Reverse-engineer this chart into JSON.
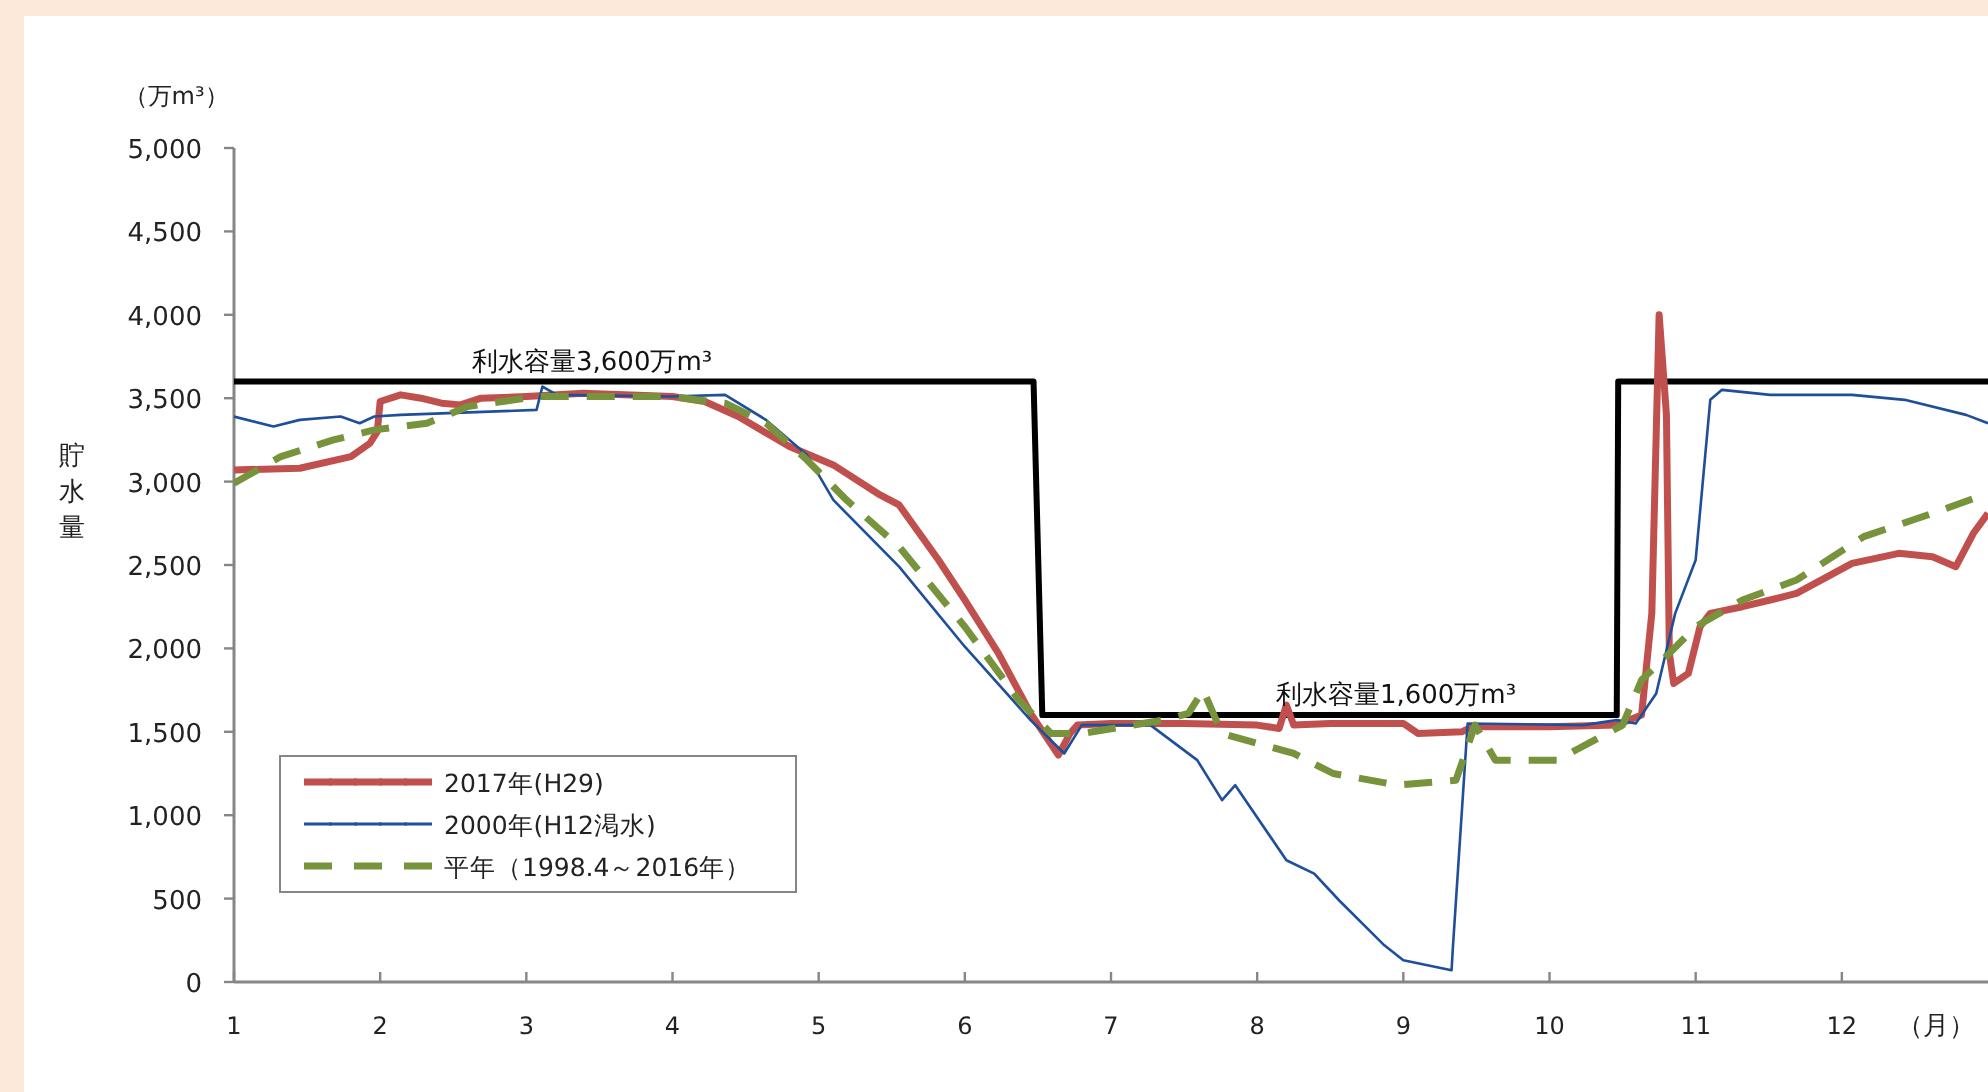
{
  "chart_data": {
    "type": "line",
    "ylabel": "貯水量",
    "xlabel": "（月）",
    "xlim": [
      1,
      13
    ],
    "xticks": [
      1,
      2,
      3,
      4,
      5,
      6,
      7,
      8,
      9,
      10,
      11,
      12
    ],
    "ylim": [
      0,
      5000
    ],
    "yticks": [
      {
        "value": 0,
        "label": "0"
      },
      {
        "value": 500,
        "label": "500"
      },
      {
        "value": 1000,
        "label": "1,000"
      },
      {
        "value": 1500,
        "label": "1,500"
      },
      {
        "value": 2000,
        "label": "2,000"
      },
      {
        "value": 2500,
        "label": "2,500"
      },
      {
        "value": 3000,
        "label": "3,000"
      },
      {
        "value": 3500,
        "label": "3,500"
      },
      {
        "value": 4000,
        "label": "4,000"
      },
      {
        "value": 4500,
        "label": "4,500"
      },
      {
        "value": 5000,
        "label": "5,000"
      }
    ],
    "grid": false,
    "legend": "bottom left",
    "marker": "none",
    "series": [
      {
        "color": "#000000",
        "line_style": "solid",
        "x": [
          1,
          6.47,
          6.53,
          10.46,
          10.47,
          13
        ],
        "values": [
          3600,
          3600,
          1600,
          1600,
          3600,
          3600
        ]
      },
      {
        "name": "2017年(H29)",
        "color": "#c0504d",
        "line_style": "solid",
        "x": [
          1.0,
          1.45,
          1.8,
          1.93,
          1.98,
          2.0,
          2.14,
          2.28,
          2.42,
          2.55,
          2.69,
          3.0,
          3.39,
          3.67,
          4.0,
          4.22,
          4.45,
          4.8,
          5.1,
          5.42,
          5.55,
          5.82,
          6.0,
          6.23,
          6.45,
          6.64,
          6.72,
          6.77,
          7.0,
          7.5,
          8.0,
          8.15,
          8.2,
          8.25,
          8.5,
          9.0,
          9.1,
          9.4,
          9.47,
          10.0,
          10.46,
          10.63,
          10.7,
          10.75,
          10.8,
          10.82,
          10.85,
          10.95,
          11.03,
          11.1,
          11.32,
          11.51,
          11.69,
          12.07,
          12.39,
          12.62,
          12.78,
          12.9,
          13.0
        ],
        "values": [
          3070,
          3080,
          3150,
          3230,
          3300,
          3480,
          3520,
          3500,
          3470,
          3460,
          3500,
          3510,
          3530,
          3520,
          3510,
          3480,
          3390,
          3210,
          3100,
          2920,
          2860,
          2530,
          2290,
          1970,
          1610,
          1360,
          1490,
          1540,
          1550,
          1550,
          1540,
          1520,
          1660,
          1540,
          1550,
          1550,
          1490,
          1500,
          1530,
          1530,
          1540,
          1600,
          2210,
          4000,
          3400,
          1970,
          1790,
          1850,
          2130,
          2210,
          2250,
          2290,
          2330,
          2510,
          2570,
          2550,
          2490,
          2690,
          2810
        ]
      },
      {
        "name": "2000年(H12渇水)",
        "color": "#1f4e9a",
        "line_style": "solid",
        "x": [
          1.0,
          1.27,
          1.45,
          1.73,
          1.86,
          1.96,
          2.14,
          3.07,
          3.11,
          3.21,
          3.99,
          4.36,
          4.64,
          4.92,
          5.1,
          5.55,
          6.0,
          6.45,
          6.68,
          6.8,
          7.27,
          7.59,
          7.76,
          7.85,
          8.2,
          8.39,
          8.56,
          8.87,
          9.0,
          9.33,
          9.34,
          9.44,
          10.23,
          10.46,
          10.59,
          10.73,
          10.86,
          11.0,
          11.1,
          11.18,
          11.51,
          12.07,
          12.43,
          12.85,
          13.0
        ],
        "values": [
          3390,
          3330,
          3370,
          3390,
          3350,
          3390,
          3400,
          3430,
          3570,
          3520,
          3510,
          3520,
          3370,
          3160,
          2890,
          2490,
          2010,
          1570,
          1370,
          1540,
          1540,
          1330,
          1090,
          1180,
          730,
          650,
          490,
          220,
          130,
          70,
          220,
          1550,
          1540,
          1570,
          1550,
          1730,
          2210,
          2530,
          3490,
          3550,
          3520,
          3520,
          3490,
          3400,
          3350
        ]
      },
      {
        "name": "平年（1998.4～2016年）",
        "color": "#77933c",
        "line_style": "dashed",
        "x": [
          1.0,
          1.32,
          1.68,
          1.96,
          2.32,
          2.6,
          3.07,
          3.99,
          4.36,
          4.64,
          4.92,
          5.19,
          5.55,
          6.0,
          6.37,
          6.59,
          6.8,
          7.36,
          7.53,
          7.63,
          7.76,
          8.25,
          8.52,
          8.96,
          9.36,
          9.49,
          9.63,
          10.05,
          10.2,
          10.5,
          10.63,
          10.82,
          11.0,
          11.32,
          11.69,
          12.15,
          12.62,
          13.0
        ],
        "values": [
          2990,
          3150,
          3250,
          3310,
          3350,
          3450,
          3510,
          3510,
          3470,
          3350,
          3130,
          2890,
          2610,
          2130,
          1690,
          1490,
          1490,
          1570,
          1610,
          1750,
          1490,
          1370,
          1250,
          1180,
          1210,
          1540,
          1330,
          1330,
          1400,
          1540,
          1810,
          1970,
          2130,
          2290,
          2410,
          2670,
          2810,
          2930
        ]
      }
    ],
    "annotations": [
      {
        "text": "利水容量3,600万m³",
        "x": 3.45,
        "y": 3600
      },
      {
        "text": "利水容量1,600万m³",
        "x": 8.95,
        "y": 1600
      },
      "（万m³）"
    ]
  }
}
